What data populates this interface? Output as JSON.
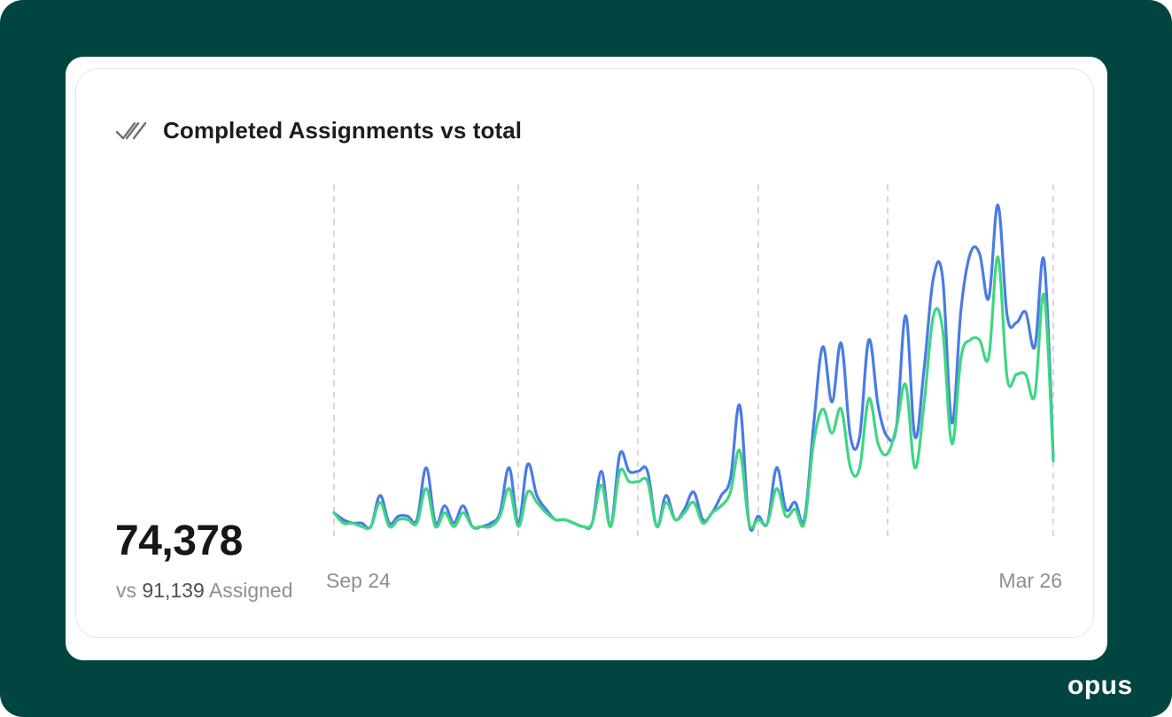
{
  "card": {
    "title": "Completed Assignments vs total",
    "title_icon": "double-check-icon",
    "big_number": "74,378",
    "sub_prefix": "vs",
    "sub_number": "91,139",
    "sub_suffix": "Assigned"
  },
  "brand": {
    "logo": "opus"
  },
  "colors": {
    "frame": "#004540",
    "total_line": "#4a7be6",
    "completed_line": "#3ed683",
    "gridline": "#cfcfcf"
  },
  "chart_data": {
    "type": "line",
    "title": "Completed Assignments vs total",
    "xlabel": "",
    "ylabel": "",
    "x_tick_labels": [
      "Sep 24",
      "Mar 26"
    ],
    "vertical_dashed_grid": true,
    "grid_dividers": 6,
    "ylim": [
      0,
      100
    ],
    "series": [
      {
        "key": "total",
        "color": "#4a7be6",
        "values": [
          5,
          3,
          2,
          2,
          1,
          10,
          2,
          4,
          4,
          3,
          18,
          2,
          7,
          2,
          7,
          1,
          1,
          2,
          5,
          18,
          2,
          19,
          10,
          6,
          3,
          3,
          2,
          1,
          2,
          17,
          1,
          22,
          17,
          17,
          17,
          1,
          10,
          3,
          6,
          11,
          3,
          5,
          10,
          15,
          36,
          2,
          4,
          2,
          18,
          6,
          8,
          3,
          30,
          53,
          37,
          54,
          27,
          27,
          55,
          36,
          27,
          30,
          62,
          27,
          47,
          73,
          73,
          31,
          64,
          80,
          80,
          67,
          94,
          62,
          60,
          63,
          53,
          78,
          21
        ]
      },
      {
        "key": "completed",
        "color": "#3ed683",
        "values": [
          5,
          2,
          2,
          1,
          1,
          8,
          1,
          3,
          3,
          2,
          12,
          1,
          5,
          1,
          5,
          1,
          1,
          1,
          4,
          12,
          1,
          11,
          8,
          5,
          3,
          3,
          2,
          1,
          2,
          13,
          1,
          17,
          14,
          14,
          14,
          1,
          8,
          3,
          5,
          8,
          2,
          5,
          7,
          11,
          23,
          2,
          3,
          2,
          12,
          4,
          6,
          2,
          25,
          35,
          28,
          35,
          18,
          18,
          38,
          25,
          22,
          30,
          42,
          18,
          37,
          62,
          58,
          25,
          50,
          55,
          55,
          50,
          79,
          44,
          45,
          45,
          39,
          68,
          20
        ]
      }
    ]
  }
}
